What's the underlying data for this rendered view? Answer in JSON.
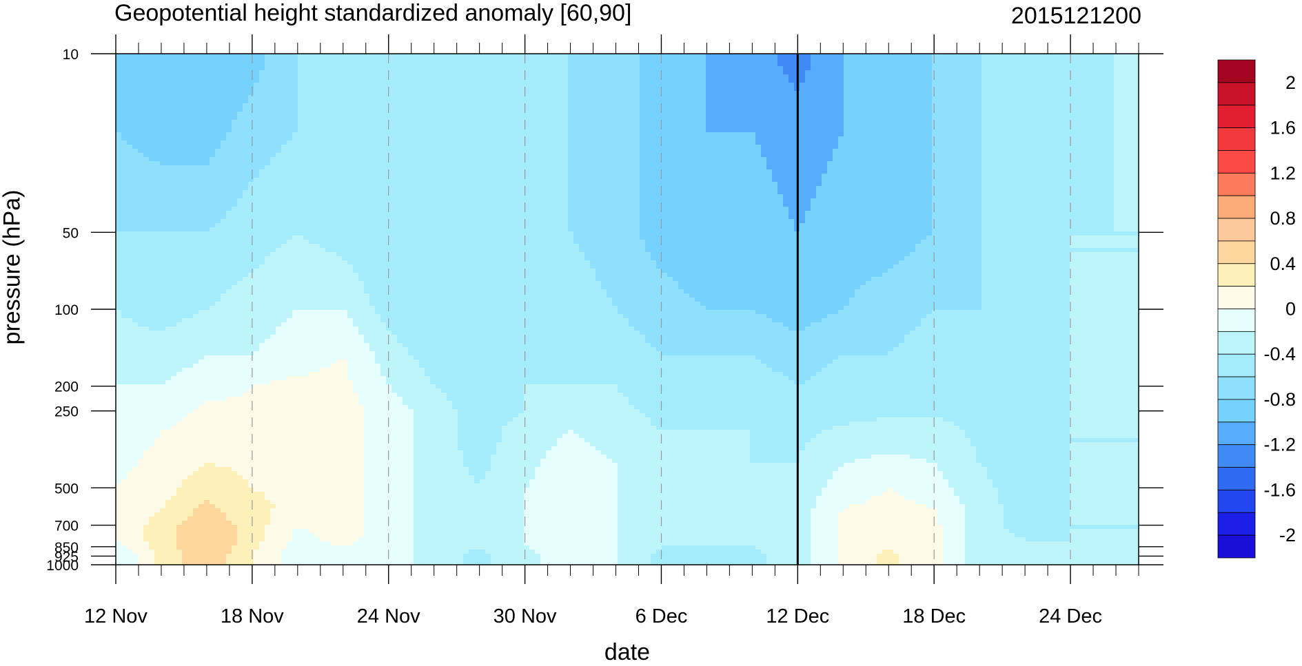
{
  "title": "Geopotential height standardized anomaly [60,90]",
  "timestamp": "2015121200",
  "chart_data": {
    "type": "heatmap",
    "subtype": "filled-contour",
    "xlabel": "date",
    "ylabel": "pressure (hPa)",
    "x_ticks": [
      "12 Nov",
      "18 Nov",
      "24 Nov",
      "30 Nov",
      "6 Dec",
      "12 Dec",
      "18 Dec",
      "24 Dec"
    ],
    "y_ticks": [
      "10",
      "50",
      "100",
      "200",
      "250",
      "500",
      "700",
      "850",
      "925",
      "1000"
    ],
    "y_scale": "log",
    "ylim": [
      1000,
      10
    ],
    "vertical_marker": "12 Dec",
    "grid": "dashed vertical lines at labeled dates",
    "colorbar_labels": [
      "2",
      "1.6",
      "1.2",
      "0.8",
      "0.4",
      "0",
      "-0.4",
      "-0.8",
      "-1.2",
      "-1.6",
      "-2"
    ],
    "levels": [
      -2.2,
      -2,
      -1.8,
      -1.6,
      -1.4,
      -1.2,
      -1,
      -0.8,
      -0.6,
      -0.4,
      -0.2,
      0,
      0.2,
      0.4,
      0.6,
      0.8,
      1,
      1.2,
      1.4,
      1.6,
      1.8,
      2,
      2.2
    ],
    "colors": [
      "#1a0fd6",
      "#1b1fe8",
      "#2247f0",
      "#2e6af2",
      "#3f8af5",
      "#56abfa",
      "#76d2fd",
      "#8fe0fd",
      "#a4ecfc",
      "#bef5fb",
      "#e6fefe",
      "#fdfbe8",
      "#fdf0b8",
      "#fcd69d",
      "#fcc79a",
      "#fbab77",
      "#fc7b5c",
      "#fc4a45",
      "#f23a3c",
      "#e21f31",
      "#c9122a",
      "#a30520"
    ],
    "grid_x_days": [
      0,
      2,
      4,
      6,
      8,
      10,
      12,
      14,
      16,
      18,
      20,
      22,
      24,
      26,
      28,
      30,
      32,
      34,
      36,
      38,
      40,
      42,
      44,
      45
    ],
    "grid_p": [
      10,
      20,
      50,
      100,
      150,
      200,
      250,
      300,
      400,
      500,
      600,
      700,
      800,
      850,
      925,
      1000
    ],
    "values": [
      [
        -1.0,
        -1.0,
        -1.0,
        -0.9,
        -0.6,
        -0.6,
        -0.6,
        -0.5,
        -0.5,
        -0.5,
        -0.6,
        -0.7,
        -0.9,
        -1.0,
        -1.1,
        -1.3,
        -1.0,
        -0.9,
        -0.8,
        -0.6,
        -0.6,
        -0.5,
        -0.4,
        -0.4
      ],
      [
        -0.8,
        -0.9,
        -0.9,
        -0.7,
        -0.6,
        -0.6,
        -0.6,
        -0.5,
        -0.5,
        -0.5,
        -0.6,
        -0.7,
        -0.9,
        -1.0,
        -1.0,
        -1.1,
        -1.0,
        -0.9,
        -0.8,
        -0.6,
        -0.6,
        -0.5,
        -0.4,
        -0.4
      ],
      [
        -0.6,
        -0.6,
        -0.6,
        -0.5,
        -0.4,
        -0.5,
        -0.6,
        -0.6,
        -0.5,
        -0.5,
        -0.6,
        -0.7,
        -0.9,
        -1.0,
        -0.9,
        -1.0,
        -0.9,
        -0.9,
        -0.8,
        -0.6,
        -0.5,
        -0.4,
        -0.4,
        -0.4
      ],
      [
        -0.4,
        -0.5,
        -0.4,
        -0.3,
        -0.2,
        -0.2,
        -0.5,
        -0.6,
        -0.6,
        -0.6,
        -0.5,
        -0.6,
        -0.7,
        -0.8,
        -0.8,
        -0.9,
        -0.8,
        -0.7,
        -0.6,
        -0.6,
        -0.5,
        -0.4,
        -0.4,
        -0.4
      ],
      [
        -0.3,
        -0.3,
        -0.2,
        -0.2,
        -0.1,
        0.0,
        -0.3,
        -0.5,
        -0.5,
        -0.5,
        -0.5,
        -0.5,
        -0.6,
        -0.6,
        -0.6,
        -0.7,
        -0.6,
        -0.6,
        -0.5,
        -0.5,
        -0.4,
        -0.4,
        -0.4,
        -0.4
      ],
      [
        -0.2,
        -0.2,
        -0.1,
        0.0,
        0.05,
        0.05,
        -0.2,
        -0.4,
        -0.5,
        -0.4,
        -0.4,
        -0.4,
        -0.5,
        -0.5,
        -0.5,
        -0.6,
        -0.5,
        -0.5,
        -0.5,
        -0.5,
        -0.5,
        -0.4,
        -0.4,
        -0.4
      ],
      [
        -0.1,
        -0.1,
        0.05,
        0.05,
        0.1,
        0.1,
        -0.1,
        -0.3,
        -0.5,
        -0.4,
        -0.3,
        -0.35,
        -0.45,
        -0.45,
        -0.45,
        -0.55,
        -0.5,
        -0.45,
        -0.45,
        -0.5,
        -0.5,
        -0.4,
        -0.4,
        -0.4
      ],
      [
        -0.1,
        0.0,
        0.1,
        0.1,
        0.15,
        0.1,
        -0.1,
        -0.3,
        -0.5,
        -0.3,
        -0.2,
        -0.3,
        -0.4,
        -0.4,
        -0.4,
        -0.45,
        -0.35,
        -0.3,
        -0.3,
        -0.45,
        -0.5,
        -0.4,
        -0.4,
        -0.4
      ],
      [
        -0.05,
        0.05,
        0.2,
        0.15,
        0.15,
        0.1,
        -0.1,
        -0.3,
        -0.45,
        -0.25,
        -0.1,
        -0.2,
        -0.4,
        -0.35,
        -0.4,
        -0.4,
        -0.2,
        -0.15,
        -0.2,
        -0.4,
        -0.5,
        -0.4,
        -0.4,
        -0.4
      ],
      [
        0.0,
        0.1,
        0.35,
        0.2,
        0.15,
        0.1,
        -0.1,
        -0.3,
        -0.4,
        -0.2,
        -0.1,
        -0.2,
        -0.35,
        -0.35,
        -0.35,
        -0.35,
        -0.1,
        0.0,
        -0.1,
        -0.35,
        -0.5,
        -0.4,
        -0.4,
        -0.4
      ],
      [
        0.0,
        0.2,
        0.45,
        0.25,
        0.15,
        0.1,
        -0.1,
        -0.3,
        -0.4,
        -0.2,
        -0.1,
        -0.2,
        -0.35,
        -0.35,
        -0.35,
        -0.3,
        0.0,
        0.05,
        0.0,
        -0.3,
        -0.5,
        -0.4,
        -0.4,
        -0.4
      ],
      [
        0.0,
        0.3,
        0.55,
        0.3,
        0.0,
        0.1,
        -0.1,
        -0.3,
        -0.4,
        -0.2,
        -0.1,
        -0.2,
        -0.35,
        -0.35,
        -0.35,
        -0.3,
        0.05,
        0.1,
        0.05,
        -0.3,
        -0.5,
        -0.4,
        -0.4,
        -0.4
      ],
      [
        0.0,
        0.3,
        0.6,
        0.3,
        -0.05,
        0.05,
        -0.1,
        -0.3,
        -0.4,
        -0.2,
        -0.1,
        -0.2,
        -0.35,
        -0.35,
        -0.35,
        -0.3,
        0.05,
        0.15,
        0.05,
        -0.3,
        -0.4,
        -0.4,
        -0.4,
        -0.4
      ],
      [
        -0.1,
        0.3,
        0.6,
        0.25,
        -0.1,
        0.0,
        -0.1,
        -0.3,
        -0.4,
        -0.2,
        -0.1,
        -0.2,
        -0.4,
        -0.4,
        -0.4,
        -0.3,
        0.05,
        0.2,
        0.05,
        -0.3,
        -0.4,
        -0.4,
        -0.4,
        -0.4
      ],
      [
        -0.2,
        0.25,
        0.55,
        0.2,
        -0.1,
        -0.05,
        -0.1,
        -0.3,
        -0.45,
        -0.25,
        -0.1,
        -0.2,
        -0.45,
        -0.45,
        -0.45,
        -0.3,
        0.05,
        0.25,
        0.05,
        -0.3,
        -0.4,
        -0.4,
        -0.4,
        -0.4
      ],
      [
        -0.2,
        0.25,
        0.55,
        0.2,
        -0.1,
        -0.05,
        -0.1,
        -0.3,
        -0.45,
        -0.25,
        -0.1,
        -0.2,
        -0.45,
        -0.45,
        -0.45,
        -0.3,
        0.05,
        0.25,
        0.05,
        -0.3,
        -0.4,
        -0.4,
        -0.4,
        -0.4
      ]
    ]
  }
}
